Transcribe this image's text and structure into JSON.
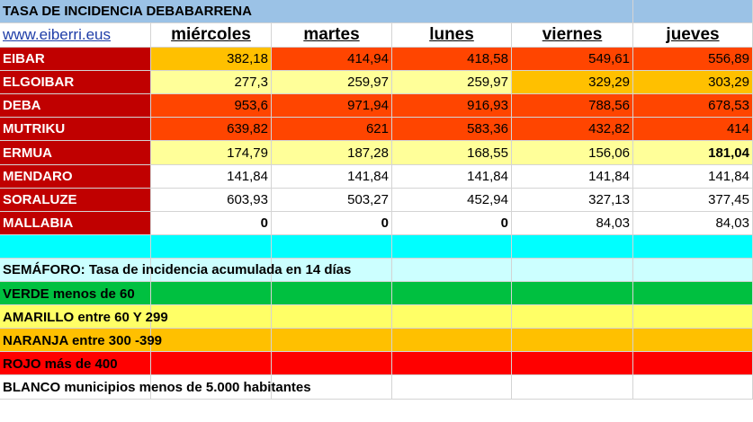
{
  "title": "TASA DE INCIDENCIA DEBABARRENA",
  "link": "www.eiberri.eus",
  "columns": [
    "miércoles",
    "martes",
    "lunes",
    "viernes",
    "jueves"
  ],
  "colors": {
    "verde": "#00c040",
    "amarillo": "#ffff99",
    "amarillo_legend": "#ffff66",
    "naranja": "#ffc000",
    "rojo_naranja": "#ff4500",
    "rojo": "#ff0000",
    "nombre": "#c00000",
    "titulo": "#9bc2e6",
    "cian": "#00ffff",
    "cian_claro": "#ccffff"
  },
  "rows": [
    {
      "name": "EIBAR",
      "values": [
        "382,18",
        "414,94",
        "418,58",
        "549,61",
        "556,89"
      ]
    },
    {
      "name": "ELGOIBAR",
      "values": [
        "277,3",
        "259,97",
        "259,97",
        "329,29",
        "303,29"
      ]
    },
    {
      "name": "DEBA",
      "values": [
        "953,6",
        "971,94",
        "916,93",
        "788,56",
        "678,53"
      ]
    },
    {
      "name": "MUTRIKU",
      "values": [
        "639,82",
        "621",
        "583,36",
        "432,82",
        "414"
      ]
    },
    {
      "name": "ERMUA",
      "values": [
        "174,79",
        "187,28",
        "168,55",
        "156,06",
        "181,04"
      ]
    },
    {
      "name": "MENDARO",
      "values": [
        "141,84",
        "141,84",
        "141,84",
        "141,84",
        "141,84"
      ]
    },
    {
      "name": "SORALUZE",
      "values": [
        "603,93",
        "503,27",
        "452,94",
        "327,13",
        "377,45"
      ]
    },
    {
      "name": "MALLABIA",
      "values": [
        "0",
        "0",
        "0",
        "84,03",
        "84,03"
      ]
    }
  ],
  "legend": {
    "semaforo": "SEMÁFORO:  Tasa de incidencia acumulada en 14 días",
    "verde": "VERDE menos de 60",
    "amarillo": "AMARILLO entre 60 Y 299",
    "naranja": "NARANJA entre 300 -399",
    "rojo": "ROJO más de 400",
    "blanco": "BLANCO municipios menos de 5.000 habitantes"
  }
}
